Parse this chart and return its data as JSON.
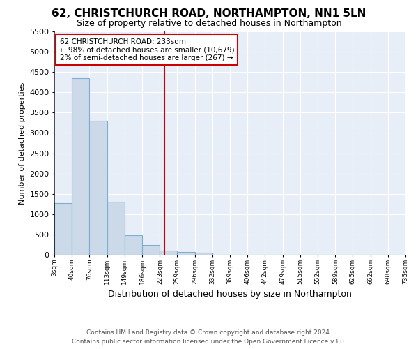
{
  "title1": "62, CHRISTCHURCH ROAD, NORTHAMPTON, NN1 5LN",
  "title2": "Size of property relative to detached houses in Northampton",
  "xlabel": "Distribution of detached houses by size in Northampton",
  "ylabel": "Number of detached properties",
  "footer1": "Contains HM Land Registry data © Crown copyright and database right 2024.",
  "footer2": "Contains public sector information licensed under the Open Government Licence v3.0.",
  "annotation_title": "62 CHRISTCHURCH ROAD: 233sqm",
  "annotation_line1": "← 98% of detached houses are smaller (10,679)",
  "annotation_line2": "2% of semi-detached houses are larger (267) →",
  "bar_color": "#ccd9e8",
  "bar_edge_color": "#7bafd4",
  "vline_color": "#cc0000",
  "vline_x": 233,
  "bins": [
    3,
    40,
    76,
    113,
    149,
    186,
    223,
    259,
    296,
    332,
    369,
    406,
    442,
    479,
    515,
    552,
    589,
    625,
    662,
    698,
    735
  ],
  "bin_labels": [
    "3sqm",
    "40sqm",
    "76sqm",
    "113sqm",
    "149sqm",
    "186sqm",
    "223sqm",
    "259sqm",
    "296sqm",
    "332sqm",
    "369sqm",
    "406sqm",
    "442sqm",
    "479sqm",
    "515sqm",
    "552sqm",
    "589sqm",
    "625sqm",
    "662sqm",
    "698sqm",
    "735sqm"
  ],
  "values": [
    1270,
    4350,
    3300,
    1300,
    480,
    240,
    100,
    70,
    55,
    0,
    0,
    0,
    0,
    0,
    0,
    0,
    0,
    0,
    0,
    0
  ],
  "ylim": [
    0,
    5500
  ],
  "yticks": [
    0,
    500,
    1000,
    1500,
    2000,
    2500,
    3000,
    3500,
    4000,
    4500,
    5000,
    5500
  ],
  "background_color": "#ffffff",
  "plot_bg_color": "#e8eef8",
  "box_color": "#cc0000",
  "grid_color": "#ffffff",
  "title1_fontsize": 11,
  "title2_fontsize": 9,
  "ylabel_fontsize": 8,
  "xlabel_fontsize": 9,
  "footer_fontsize": 6.5
}
